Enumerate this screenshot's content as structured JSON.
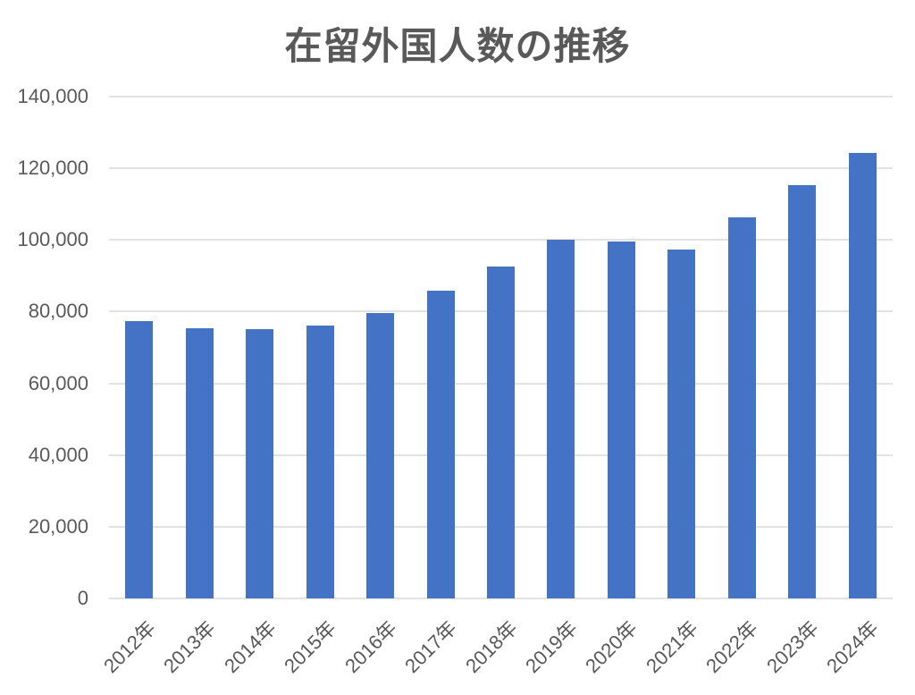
{
  "chart_data": {
    "type": "bar",
    "title": "在留外国人数の推移",
    "categories": [
      "2012年",
      "2013年",
      "2014年",
      "2015年",
      "2016年",
      "2017年",
      "2018年",
      "2019年",
      "2020年",
      "2021年",
      "2022年",
      "2023年",
      "2024年"
    ],
    "values": [
      77300,
      75400,
      75000,
      76100,
      79500,
      85800,
      92500,
      100100,
      99600,
      97300,
      106400,
      115400,
      124300
    ],
    "xlabel": "",
    "ylabel": "",
    "ylim": [
      0,
      140000
    ],
    "ytick_step": 20000,
    "ytick_labels": [
      "0",
      "20,000",
      "40,000",
      "60,000",
      "80,000",
      "100,000",
      "120,000",
      "140,000"
    ],
    "grid": true,
    "legend_position": "none",
    "colors": {
      "bar_fill": "#4472C4",
      "title_text": "#595959",
      "axis_text": "#595959",
      "gridline": "#e2e2e2"
    }
  }
}
